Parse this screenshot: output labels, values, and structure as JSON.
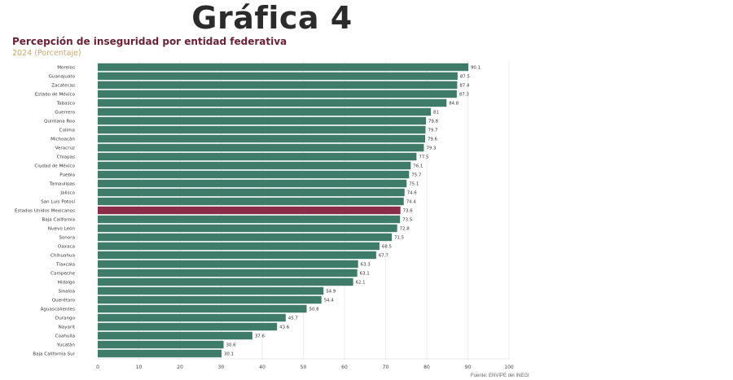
{
  "header": {
    "slide_title": "Gráfica 4",
    "chart_title": "Percepción de inseguridad por entidad federativa",
    "chart_subtitle": "2024 (Porcentaje)",
    "source": "Fuente: ENVIPE del INEGI"
  },
  "colors": {
    "bar": "#3e7b68",
    "highlight": "#8a2d48",
    "title": "#6b2236",
    "subtitle": "#c9a96a"
  },
  "chart_data": {
    "type": "bar",
    "orientation": "horizontal",
    "title": "Percepción de inseguridad por entidad federativa",
    "subtitle": "2024 (Porcentaje)",
    "categories": [
      "Morelos",
      "Guanajuato",
      "Zacatecas",
      "Estado de México",
      "Tabasco",
      "Guerrero",
      "Quintana Roo",
      "Colima",
      "Michoacán",
      "Veracruz",
      "Chiapas",
      "Ciudad de México",
      "Puebla",
      "Tamaulipas",
      "Jalisco",
      "San Luis Potosí",
      "Estados Unidos Mexicanos",
      "Baja California",
      "Nuevo León",
      "Sonora",
      "Oaxaca",
      "Chihuahua",
      "Tlaxcala",
      "Campeche",
      "Hidalgo",
      "Sinaloa",
      "Querétaro",
      "Aguascalientes",
      "Durango",
      "Nayarit",
      "Coahuila",
      "Yucatán",
      "Baja California Sur"
    ],
    "values": [
      90.1,
      87.5,
      87.4,
      87.3,
      84.8,
      81,
      79.8,
      79.7,
      79.6,
      79.3,
      77.5,
      76.1,
      75.7,
      75.1,
      74.6,
      74.4,
      73.6,
      73.5,
      72.8,
      71.5,
      68.5,
      67.7,
      63.3,
      63.1,
      62.1,
      54.9,
      54.4,
      50.8,
      45.7,
      43.6,
      37.6,
      30.6,
      30.1
    ],
    "value_labels": [
      "90.1",
      "87.5",
      "87.4",
      "87.3",
      "84.8",
      "81",
      "79.8",
      "79.7",
      "79.6",
      "79.3",
      "77.5",
      "76.1",
      "75.7",
      "75.1",
      "74.6",
      "74.4",
      "73.6",
      "73.5",
      "72.8",
      "71.5",
      "68.5",
      "67.7",
      "63.3",
      "63.1",
      "62.1",
      "54.9",
      "54.4",
      "50.8",
      "45.7",
      "43.6",
      "37.6",
      "30.6",
      "30.1"
    ],
    "highlight_category": "Estados Unidos Mexicanos",
    "xlim": [
      0,
      100
    ],
    "x_ticks": [
      0,
      10,
      20,
      30,
      40,
      50,
      60,
      70,
      80,
      90,
      100
    ],
    "x_tick_labels": [
      "0",
      "10",
      "20",
      "30",
      "40",
      "50",
      "60",
      "70",
      "80",
      "90",
      "100"
    ],
    "grid": true,
    "legend": "none"
  }
}
